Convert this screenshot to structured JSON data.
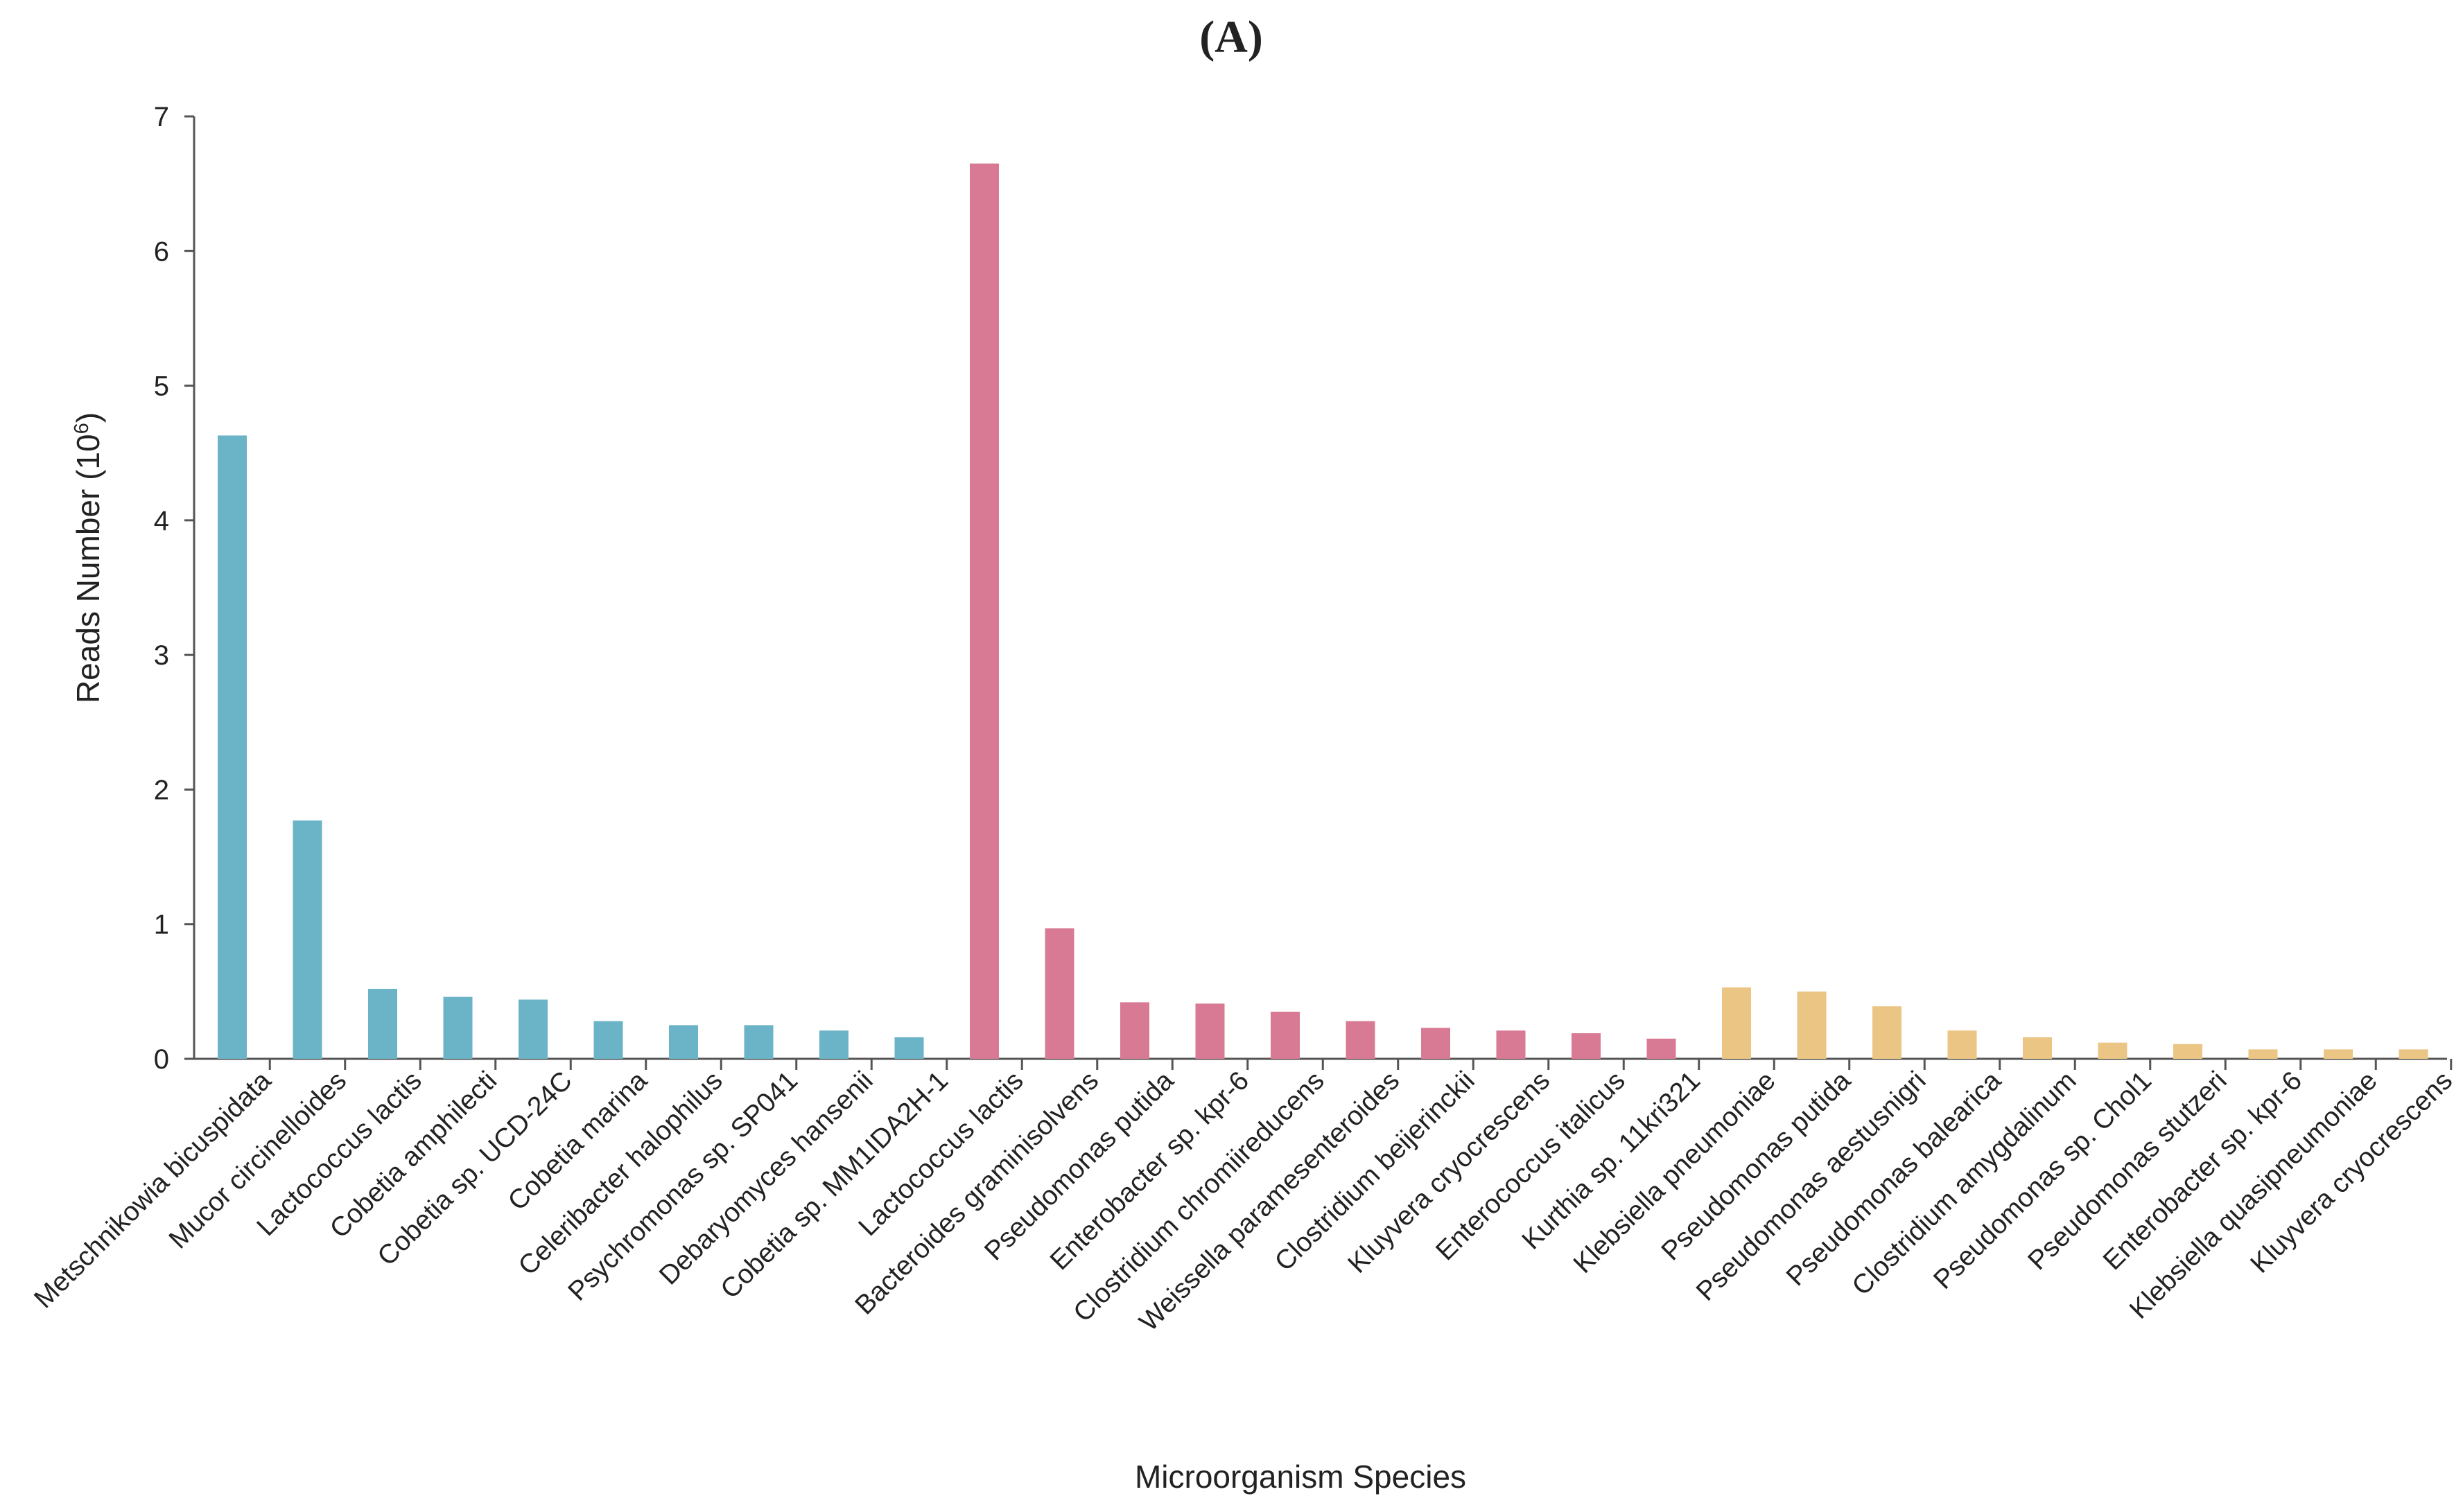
{
  "chart_data": {
    "type": "bar",
    "panel_label": "(A)",
    "xlabel": "Microorganism Species",
    "ylabel_main": "Reads Number (10",
    "ylabel_exponent": "6",
    "ylabel_close": ")",
    "ylim": [
      0,
      7
    ],
    "yticks": [
      "0",
      "1",
      "2",
      "3",
      "4",
      "5",
      "6",
      "7"
    ],
    "grid": false,
    "groups": [
      {
        "name": "group-1",
        "color": "#6bb3c7"
      },
      {
        "name": "group-2",
        "color": "#d87a93"
      },
      {
        "name": "group-3",
        "color": "#ebc583"
      }
    ],
    "categories": [
      "Metschnikowia bicuspidata",
      "Mucor circinelloides",
      "Lactococcus lactis",
      "Cobetia amphilecti",
      "Cobetia sp. UCD-24C",
      "Cobetia marina",
      "Celeribacter halophilus",
      "Psychromonas sp. SP041",
      "Debaryomyces hansenii",
      "Cobetia sp. MM1IDA2H-1",
      "Lactococcus lactis",
      "Bacteroides graminisolvens",
      "Pseudomonas putida",
      "Enterobacter sp. kpr-6",
      "Clostridium chromiireducens",
      "Weissella paramesenteroides",
      "Clostridium beijerinckii",
      "Kluyvera cryocrescens",
      "Enterococcus italicus",
      "Kurthia sp. 11kri321",
      "Klebsiella pneumoniae",
      "Pseudomonas putida",
      "Pseudomonas aestusnigri",
      "Pseudomonas balearica",
      "Clostridium amygdalinum",
      "Pseudomonas sp. Chol1",
      "Pseudomonas stutzeri",
      "Enterobacter sp. kpr-6",
      "Klebsiella quasipneumoniae",
      "Kluyvera cryocrescens"
    ],
    "values": [
      4.63,
      1.77,
      0.52,
      0.46,
      0.44,
      0.28,
      0.25,
      0.25,
      0.21,
      0.16,
      6.65,
      0.97,
      0.42,
      0.41,
      0.35,
      0.28,
      0.23,
      0.21,
      0.19,
      0.15,
      0.53,
      0.5,
      0.39,
      0.21,
      0.16,
      0.12,
      0.11,
      0.07,
      0.07,
      0.07
    ],
    "group_index": [
      0,
      0,
      0,
      0,
      0,
      0,
      0,
      0,
      0,
      0,
      1,
      1,
      1,
      1,
      1,
      1,
      1,
      1,
      1,
      1,
      2,
      2,
      2,
      2,
      2,
      2,
      2,
      2,
      2,
      2
    ]
  }
}
